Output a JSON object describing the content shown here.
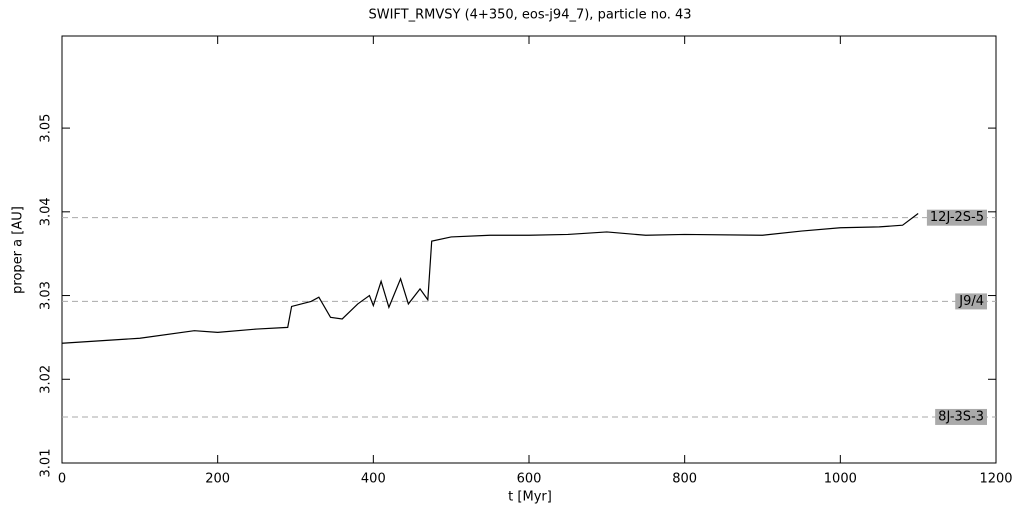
{
  "chart_data": {
    "type": "line",
    "title": "SWIFT_RMVSY (4+350, eos-j94_7), particle no. 43",
    "xlabel": "t [Myr]",
    "ylabel": "proper a [AU]",
    "x": [
      0,
      100,
      170,
      200,
      250,
      290,
      295,
      320,
      330,
      345,
      360,
      380,
      395,
      400,
      410,
      420,
      435,
      445,
      460,
      470,
      475,
      500,
      550,
      600,
      650,
      700,
      750,
      800,
      900,
      950,
      1000,
      1050,
      1080,
      1100
    ],
    "series": [
      {
        "name": "proper a",
        "color": "#000000",
        "values": [
          3.0243,
          3.0249,
          3.0258,
          3.0256,
          3.026,
          3.0262,
          3.0287,
          3.0293,
          3.0298,
          3.0274,
          3.0272,
          3.029,
          3.03,
          3.0288,
          3.0317,
          3.0286,
          3.032,
          3.029,
          3.0308,
          3.0295,
          3.0365,
          3.037,
          3.0372,
          3.0372,
          3.0373,
          3.0376,
          3.0372,
          3.0373,
          3.0372,
          3.0377,
          3.0381,
          3.0382,
          3.0384,
          3.0398
        ]
      }
    ],
    "xlim": [
      0,
      1200
    ],
    "xticks": [
      0,
      200,
      400,
      600,
      800,
      1000,
      1200
    ],
    "ylim": [
      3.01,
      3.061
    ],
    "yticks": [
      3.01,
      3.02,
      3.03,
      3.04,
      3.05
    ],
    "annotations": [
      {
        "label": "12J-2S-5",
        "y": 3.0393
      },
      {
        "label": "J9/4",
        "y": 3.0293
      },
      {
        "label": "8J-3S-3",
        "y": 3.0155
      }
    ]
  }
}
